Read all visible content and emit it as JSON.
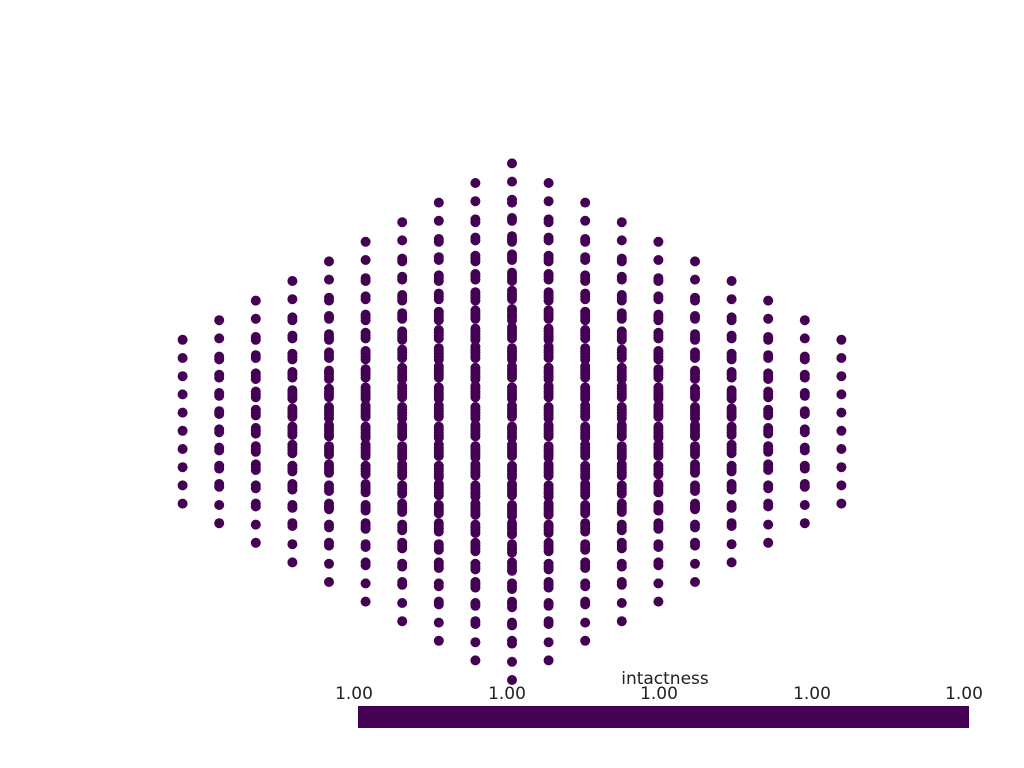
{
  "scene": {
    "point_color": "#440154",
    "background_color": "#ffffff",
    "point_cloud": {
      "grid_points_per_axis": 10
    }
  },
  "scalar_bar": {
    "title": "intactness",
    "colormap": "viridis",
    "bar_color": "#440154",
    "range": [
      1.0,
      1.0
    ],
    "tick_labels": [
      "1.00",
      "1.00",
      "1.00",
      "1.00",
      "1.00"
    ]
  }
}
